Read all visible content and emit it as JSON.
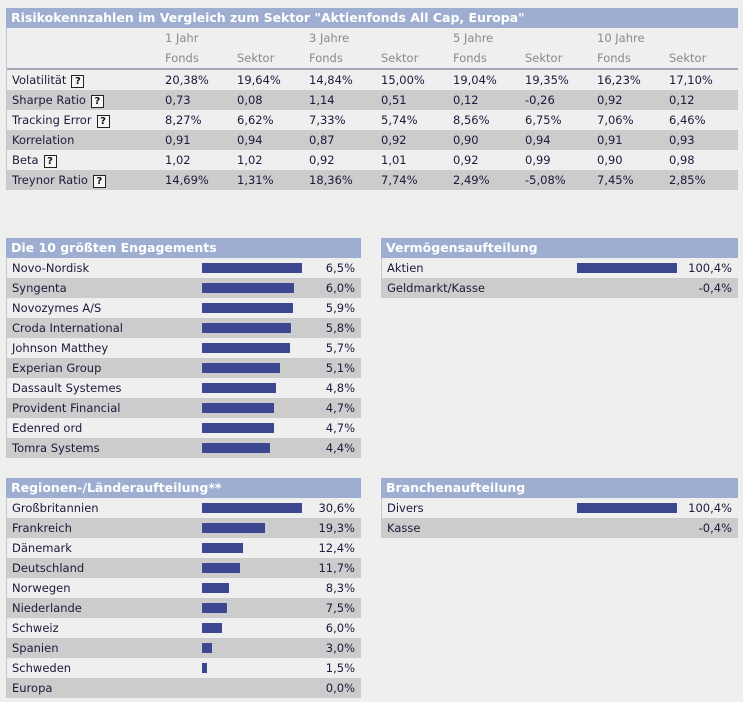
{
  "risk": {
    "title": "Risikokennzahlen im Vergleich zum Sektor \"Aktienfonds All Cap, Europa\"",
    "periods": [
      "1 Jahr",
      "3 Jahre",
      "5 Jahre",
      "10 Jahre"
    ],
    "subheaders": [
      "Fonds",
      "Sektor",
      "Fonds",
      "Sektor",
      "Fonds",
      "Sektor",
      "Fonds",
      "Sektor"
    ],
    "help_label": "?",
    "rows": [
      {
        "label": "Volatilität",
        "help": true,
        "values": [
          "20,38%",
          "19,64%",
          "14,84%",
          "15,00%",
          "19,04%",
          "19,35%",
          "16,23%",
          "17,10%"
        ]
      },
      {
        "label": "Sharpe Ratio",
        "help": true,
        "values": [
          "0,73",
          "0,08",
          "1,14",
          "0,51",
          "0,12",
          "-0,26",
          "0,92",
          "0,12"
        ]
      },
      {
        "label": "Tracking Error",
        "help": true,
        "values": [
          "8,27%",
          "6,62%",
          "7,33%",
          "5,74%",
          "8,56%",
          "6,75%",
          "7,06%",
          "6,46%"
        ]
      },
      {
        "label": "Korrelation",
        "help": false,
        "values": [
          "0,91",
          "0,94",
          "0,87",
          "0,92",
          "0,90",
          "0,94",
          "0,91",
          "0,93"
        ]
      },
      {
        "label": "Beta",
        "help": true,
        "values": [
          "1,02",
          "1,02",
          "0,92",
          "1,01",
          "0,92",
          "0,99",
          "0,90",
          "0,98"
        ]
      },
      {
        "label": "Treynor Ratio",
        "help": true,
        "values": [
          "14,69%",
          "1,31%",
          "18,36%",
          "7,74%",
          "2,49%",
          "-5,08%",
          "7,45%",
          "2,85%"
        ]
      }
    ]
  },
  "top10": {
    "title": "Die 10 größten Engagements",
    "items": [
      {
        "label": "Novo-Nordisk",
        "value": "6,5%",
        "pct": 6.5
      },
      {
        "label": "Syngenta",
        "value": "6,0%",
        "pct": 6.0
      },
      {
        "label": "Novozymes A/S",
        "value": "5,9%",
        "pct": 5.9
      },
      {
        "label": "Croda International",
        "value": "5,8%",
        "pct": 5.8
      },
      {
        "label": "Johnson Matthey",
        "value": "5,7%",
        "pct": 5.7
      },
      {
        "label": "Experian Group",
        "value": "5,1%",
        "pct": 5.1
      },
      {
        "label": "Dassault Systemes",
        "value": "4,8%",
        "pct": 4.8
      },
      {
        "label": "Provident Financial",
        "value": "4,7%",
        "pct": 4.7
      },
      {
        "label": "Edenred ord",
        "value": "4,7%",
        "pct": 4.7
      },
      {
        "label": "Tomra Systems",
        "value": "4,4%",
        "pct": 4.4
      }
    ]
  },
  "assets": {
    "title": "Vermögensaufteilung",
    "items": [
      {
        "label": "Aktien",
        "value": "100,4%",
        "pct": 100.4
      },
      {
        "label": "Geldmarkt/Kasse",
        "value": "-0,4%",
        "pct": -0.4
      }
    ]
  },
  "regions": {
    "title": "Regionen-/Länderaufteilung**",
    "items": [
      {
        "label": "Großbritannien",
        "value": "30,6%",
        "pct": 30.6
      },
      {
        "label": "Frankreich",
        "value": "19,3%",
        "pct": 19.3
      },
      {
        "label": "Dänemark",
        "value": "12,4%",
        "pct": 12.4
      },
      {
        "label": "Deutschland",
        "value": "11,7%",
        "pct": 11.7
      },
      {
        "label": "Norwegen",
        "value": "8,3%",
        "pct": 8.3
      },
      {
        "label": "Niederlande",
        "value": "7,5%",
        "pct": 7.5
      },
      {
        "label": "Schweiz",
        "value": "6,0%",
        "pct": 6.0
      },
      {
        "label": "Spanien",
        "value": "3,0%",
        "pct": 3.0
      },
      {
        "label": "Schweden",
        "value": "1,5%",
        "pct": 1.5
      },
      {
        "label": "Europa",
        "value": "0,0%",
        "pct": 0.0
      }
    ]
  },
  "sectors": {
    "title": "Branchenaufteilung",
    "items": [
      {
        "label": "Divers",
        "value": "100,4%",
        "pct": 100.4
      },
      {
        "label": "Kasse",
        "value": "-0,4%",
        "pct": -0.4
      }
    ]
  },
  "colors": {
    "header_bg": "#9eaed0",
    "bar": "#3d4690",
    "row_alt": "#cccccc",
    "background": "#efefef"
  }
}
